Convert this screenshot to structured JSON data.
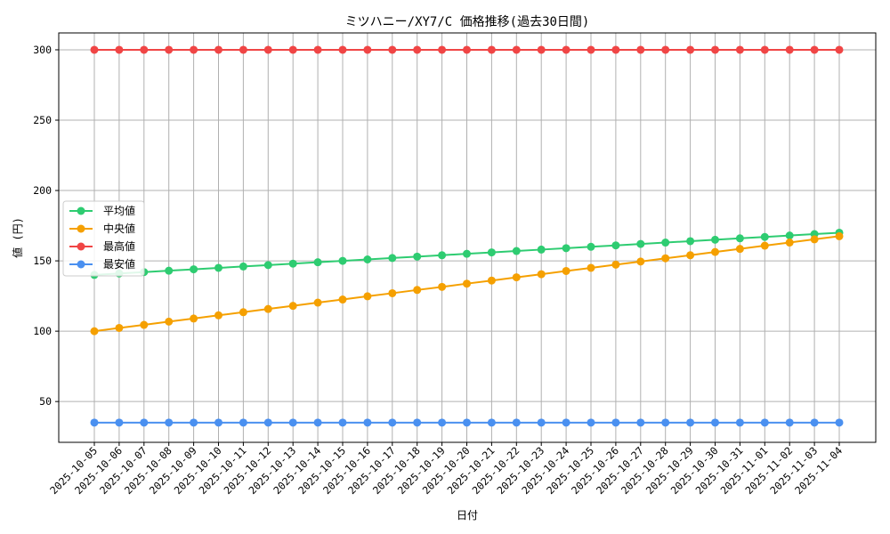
{
  "chart_data": {
    "type": "line",
    "title": "ミツハニー/XY7/C 価格推移(過去30日間)",
    "xlabel": "日付",
    "ylabel": "値 (円)",
    "categories": [
      "2025-10-05",
      "2025-10-06",
      "2025-10-07",
      "2025-10-08",
      "2025-10-09",
      "2025-10-10",
      "2025-10-11",
      "2025-10-12",
      "2025-10-13",
      "2025-10-14",
      "2025-10-15",
      "2025-10-16",
      "2025-10-17",
      "2025-10-18",
      "2025-10-19",
      "2025-10-20",
      "2025-10-21",
      "2025-10-22",
      "2025-10-23",
      "2025-10-24",
      "2025-10-25",
      "2025-10-26",
      "2025-10-27",
      "2025-10-28",
      "2025-10-29",
      "2025-10-30",
      "2025-10-31",
      "2025-11-01",
      "2025-11-02",
      "2025-11-03",
      "2025-11-04"
    ],
    "ylim": [
      21,
      312
    ],
    "yticks": [
      50,
      100,
      150,
      200,
      250,
      300
    ],
    "grid": true,
    "legend_position": "center-left",
    "series": [
      {
        "name": "平均値",
        "color": "#2ecc71",
        "values": [
          140,
          141,
          142,
          143,
          144,
          145,
          146,
          147,
          148,
          149,
          150,
          151,
          152,
          153,
          154,
          155,
          156,
          157,
          158,
          159,
          160,
          161,
          162,
          163,
          164,
          165,
          166,
          167,
          168,
          169,
          170
        ]
      },
      {
        "name": "中央値",
        "color": "#f5a000",
        "values": [
          100,
          102.3,
          104.5,
          106.8,
          109,
          111.3,
          113.5,
          115.8,
          118,
          120.3,
          122.5,
          124.8,
          127,
          129.3,
          131.5,
          133.8,
          136,
          138.3,
          140.5,
          142.8,
          145,
          147.3,
          149.5,
          151.8,
          154,
          156.3,
          158.5,
          160.8,
          163,
          165.3,
          167.5
        ]
      },
      {
        "name": "最高値",
        "color": "#f04545",
        "values": [
          300,
          300,
          300,
          300,
          300,
          300,
          300,
          300,
          300,
          300,
          300,
          300,
          300,
          300,
          300,
          300,
          300,
          300,
          300,
          300,
          300,
          300,
          300,
          300,
          300,
          300,
          300,
          300,
          300,
          300,
          300
        ]
      },
      {
        "name": "最安値",
        "color": "#4a90f0",
        "values": [
          35,
          35,
          35,
          35,
          35,
          35,
          35,
          35,
          35,
          35,
          35,
          35,
          35,
          35,
          35,
          35,
          35,
          35,
          35,
          35,
          35,
          35,
          35,
          35,
          35,
          35,
          35,
          35,
          35,
          35,
          35
        ]
      }
    ]
  }
}
